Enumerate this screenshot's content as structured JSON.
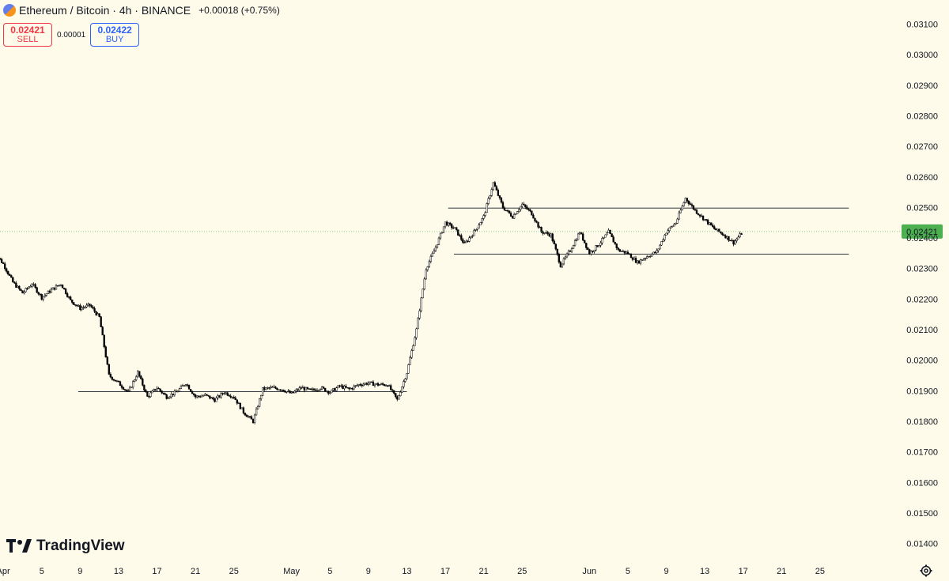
{
  "header": {
    "symbol": "Ethereum",
    "separator": "/",
    "quote": "Bitcoin",
    "interval": "4h",
    "exchange": "BINANCE",
    "title_full": "Ethereum / Bitcoin · 4h · BINANCE",
    "change": "+0.00018 (+0.75%)"
  },
  "trade": {
    "sell_price": "0.02421",
    "sell_label": "SELL",
    "spread": "0.00001",
    "buy_price": "0.02422",
    "buy_label": "BUY"
  },
  "branding": {
    "logo_text": "TradingView"
  },
  "icons": {
    "symbol": "eth-btc-icon",
    "logo": "tradingview-logo-icon",
    "settings": "gear-icon"
  },
  "colors": {
    "background": "#fefbea",
    "up": "#089981",
    "down": "#f23645",
    "candle_body": "#000000",
    "last_price_badge": "#4caf50",
    "last_price_line": "#4caf50",
    "axis_text": "#131722"
  },
  "chart_data": {
    "type": "candlestick",
    "interval": "4h",
    "last_price": 0.02421,
    "last_price_label": "0.02421",
    "y_axis": {
      "range": [
        0.0139,
        0.0311
      ],
      "ticks": [
        0.031,
        0.03,
        0.029,
        0.028,
        0.027,
        0.026,
        0.025,
        0.024,
        0.023,
        0.022,
        0.021,
        0.02,
        0.019,
        0.018,
        0.017,
        0.016,
        0.015,
        0.014
      ],
      "tick_labels": [
        "0.03100",
        "0.03000",
        "0.02900",
        "0.02800",
        "0.02700",
        "0.02600",
        "0.02500",
        "0.02400",
        "0.02300",
        "0.02200",
        "0.02100",
        "0.02000",
        "0.01900",
        "0.01800",
        "0.01700",
        "0.01600",
        "0.01500",
        "0.01400"
      ]
    },
    "x_axis": {
      "start_day": "Mar 31",
      "tick_labels": [
        "Apr",
        "5",
        "9",
        "13",
        "17",
        "21",
        "25",
        "May",
        "5",
        "9",
        "13",
        "17",
        "21",
        "25",
        "Jun",
        "5",
        "9",
        "13",
        "17",
        "21",
        "25"
      ],
      "tick_days": [
        1,
        5,
        9,
        13,
        17,
        21,
        25,
        31,
        35,
        39,
        43,
        47,
        51,
        55,
        62,
        66,
        70,
        74,
        78,
        82,
        86
      ]
    },
    "price_path": [
      [
        0,
        0.02355
      ],
      [
        1,
        0.02315
      ],
      [
        2,
        0.02255
      ],
      [
        3,
        0.0222
      ],
      [
        4,
        0.0225
      ],
      [
        5,
        0.02205
      ],
      [
        6,
        0.0223
      ],
      [
        7,
        0.0225
      ],
      [
        8,
        0.02195
      ],
      [
        9,
        0.0217
      ],
      [
        10,
        0.0218
      ],
      [
        11,
        0.0214
      ],
      [
        12,
        0.0195
      ],
      [
        13,
        0.01925
      ],
      [
        14,
        0.01895
      ],
      [
        15,
        0.0196
      ],
      [
        16,
        0.0188
      ],
      [
        17,
        0.0191
      ],
      [
        18,
        0.0188
      ],
      [
        19,
        0.01895
      ],
      [
        20,
        0.01925
      ],
      [
        21,
        0.0188
      ],
      [
        22,
        0.01885
      ],
      [
        23,
        0.0187
      ],
      [
        24,
        0.01895
      ],
      [
        25,
        0.0188
      ],
      [
        26,
        0.0183
      ],
      [
        27,
        0.018
      ],
      [
        28,
        0.01905
      ],
      [
        29,
        0.0191
      ],
      [
        30,
        0.01905
      ],
      [
        31,
        0.0189
      ],
      [
        32,
        0.0191
      ],
      [
        33,
        0.019
      ],
      [
        34,
        0.0191
      ],
      [
        35,
        0.01895
      ],
      [
        36,
        0.01915
      ],
      [
        37,
        0.01905
      ],
      [
        38,
        0.0192
      ],
      [
        39,
        0.01925
      ],
      [
        40,
        0.0192
      ],
      [
        41,
        0.0192
      ],
      [
        42,
        0.0187
      ],
      [
        43,
        0.0196
      ],
      [
        44,
        0.021
      ],
      [
        45,
        0.023
      ],
      [
        46,
        0.0237
      ],
      [
        47,
        0.0245
      ],
      [
        48,
        0.0243
      ],
      [
        49,
        0.0238
      ],
      [
        50,
        0.0242
      ],
      [
        51,
        0.0247
      ],
      [
        52,
        0.0258
      ],
      [
        53,
        0.025
      ],
      [
        54,
        0.0247
      ],
      [
        55,
        0.0251
      ],
      [
        56,
        0.0248
      ],
      [
        57,
        0.0242
      ],
      [
        58,
        0.0241
      ],
      [
        59,
        0.0231
      ],
      [
        60,
        0.0236
      ],
      [
        61,
        0.0242
      ],
      [
        62,
        0.0235
      ],
      [
        63,
        0.0238
      ],
      [
        64,
        0.0242
      ],
      [
        65,
        0.0236
      ],
      [
        66,
        0.0235
      ],
      [
        67,
        0.0232
      ],
      [
        68,
        0.0234
      ],
      [
        69,
        0.02355
      ],
      [
        70,
        0.0242
      ],
      [
        71,
        0.0245
      ],
      [
        72,
        0.0253
      ],
      [
        73,
        0.0249
      ],
      [
        74,
        0.0246
      ],
      [
        75,
        0.0243
      ],
      [
        76,
        0.0241
      ],
      [
        77,
        0.02385
      ],
      [
        78,
        0.02421
      ]
    ],
    "levels": [
      {
        "price": 0.01897,
        "from_day": 8.8,
        "to_day": 43
      },
      {
        "price": 0.02498,
        "from_day": 47.3,
        "to_day": 89
      },
      {
        "price": 0.02347,
        "from_day": 47.9,
        "to_day": 89
      }
    ]
  }
}
